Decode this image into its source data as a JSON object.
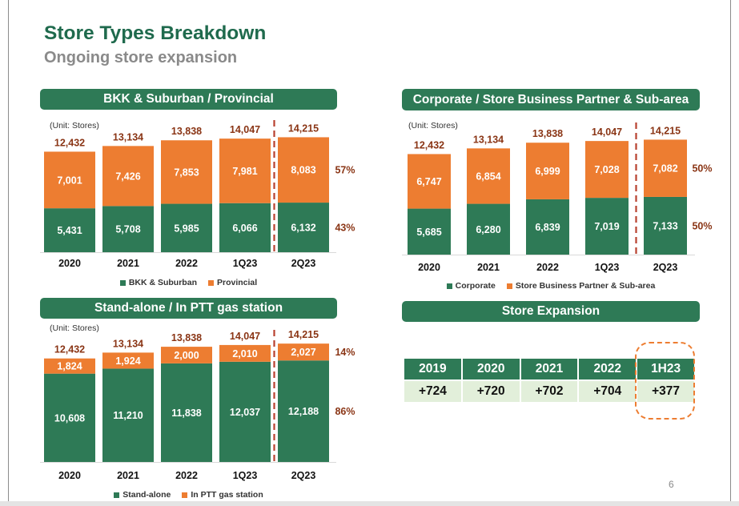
{
  "slide": {
    "title": "Store Types Breakdown",
    "subtitle": "Ongoing store expansion",
    "page_number": "6"
  },
  "colors": {
    "title_green": "#1f6a4d",
    "panel_green": "#2e7a56",
    "bar_green": "#2e7a56",
    "bar_orange": "#ed7d31",
    "value_red": "#8a3515",
    "divider_red": "#b8412f",
    "table_value_bg": "#e2efda",
    "highlight_orange": "#ed7d31"
  },
  "chart_data": [
    {
      "type": "bar",
      "stacked": true,
      "title": "BKK & Suburban / Provincial",
      "unit_note": "(Unit: Stores)",
      "categories": [
        "2020",
        "2021",
        "2022",
        "1Q23",
        "2Q23"
      ],
      "series": [
        {
          "name": "BKK & Suburban",
          "color": "#2e7a56",
          "values": [
            5431,
            5708,
            5985,
            6066,
            6132
          ],
          "share": "43%"
        },
        {
          "name": "Provincial",
          "color": "#ed7d31",
          "values": [
            7001,
            7426,
            7853,
            7981,
            8083
          ],
          "share": "57%"
        }
      ],
      "totals": [
        12432,
        13134,
        13838,
        14047,
        14215
      ],
      "divider_before": "2Q23",
      "legend": "bottom",
      "grid": false
    },
    {
      "type": "bar",
      "stacked": true,
      "title": "Corporate / Store Business Partner & Sub-area",
      "unit_note": "(Unit: Stores)",
      "categories": [
        "2020",
        "2021",
        "2022",
        "1Q23",
        "2Q23"
      ],
      "series": [
        {
          "name": "Corporate",
          "color": "#2e7a56",
          "values": [
            5685,
            6280,
            6839,
            7019,
            7133
          ],
          "share": "50%"
        },
        {
          "name": "Store Business Partner & Sub-area",
          "color": "#ed7d31",
          "values": [
            6747,
            6854,
            6999,
            7028,
            7082
          ],
          "share": "50%"
        }
      ],
      "totals": [
        12432,
        13134,
        13838,
        14047,
        14215
      ],
      "divider_before": "2Q23",
      "legend": "bottom",
      "grid": false
    },
    {
      "type": "bar",
      "stacked": true,
      "title": "Stand-alone / In PTT gas station",
      "unit_note": "(Unit: Stores)",
      "categories": [
        "2020",
        "2021",
        "2022",
        "1Q23",
        "2Q23"
      ],
      "series": [
        {
          "name": "Stand-alone",
          "color": "#2e7a56",
          "values": [
            10608,
            11210,
            11838,
            12037,
            12188
          ],
          "share": "86%"
        },
        {
          "name": "In PTT gas station",
          "color": "#ed7d31",
          "values": [
            1824,
            1924,
            2000,
            2010,
            2027
          ],
          "share": "14%"
        }
      ],
      "totals": [
        12432,
        13134,
        13838,
        14047,
        14215
      ],
      "divider_before": "2Q23",
      "legend": "bottom",
      "grid": false
    },
    {
      "type": "table",
      "title": "Store Expansion",
      "columns": [
        "2019",
        "2020",
        "2021",
        "2022",
        "1H23"
      ],
      "rows": [
        [
          "+724",
          "+720",
          "+702",
          "+704",
          "+377"
        ]
      ],
      "highlighted_column": "1H23"
    }
  ]
}
